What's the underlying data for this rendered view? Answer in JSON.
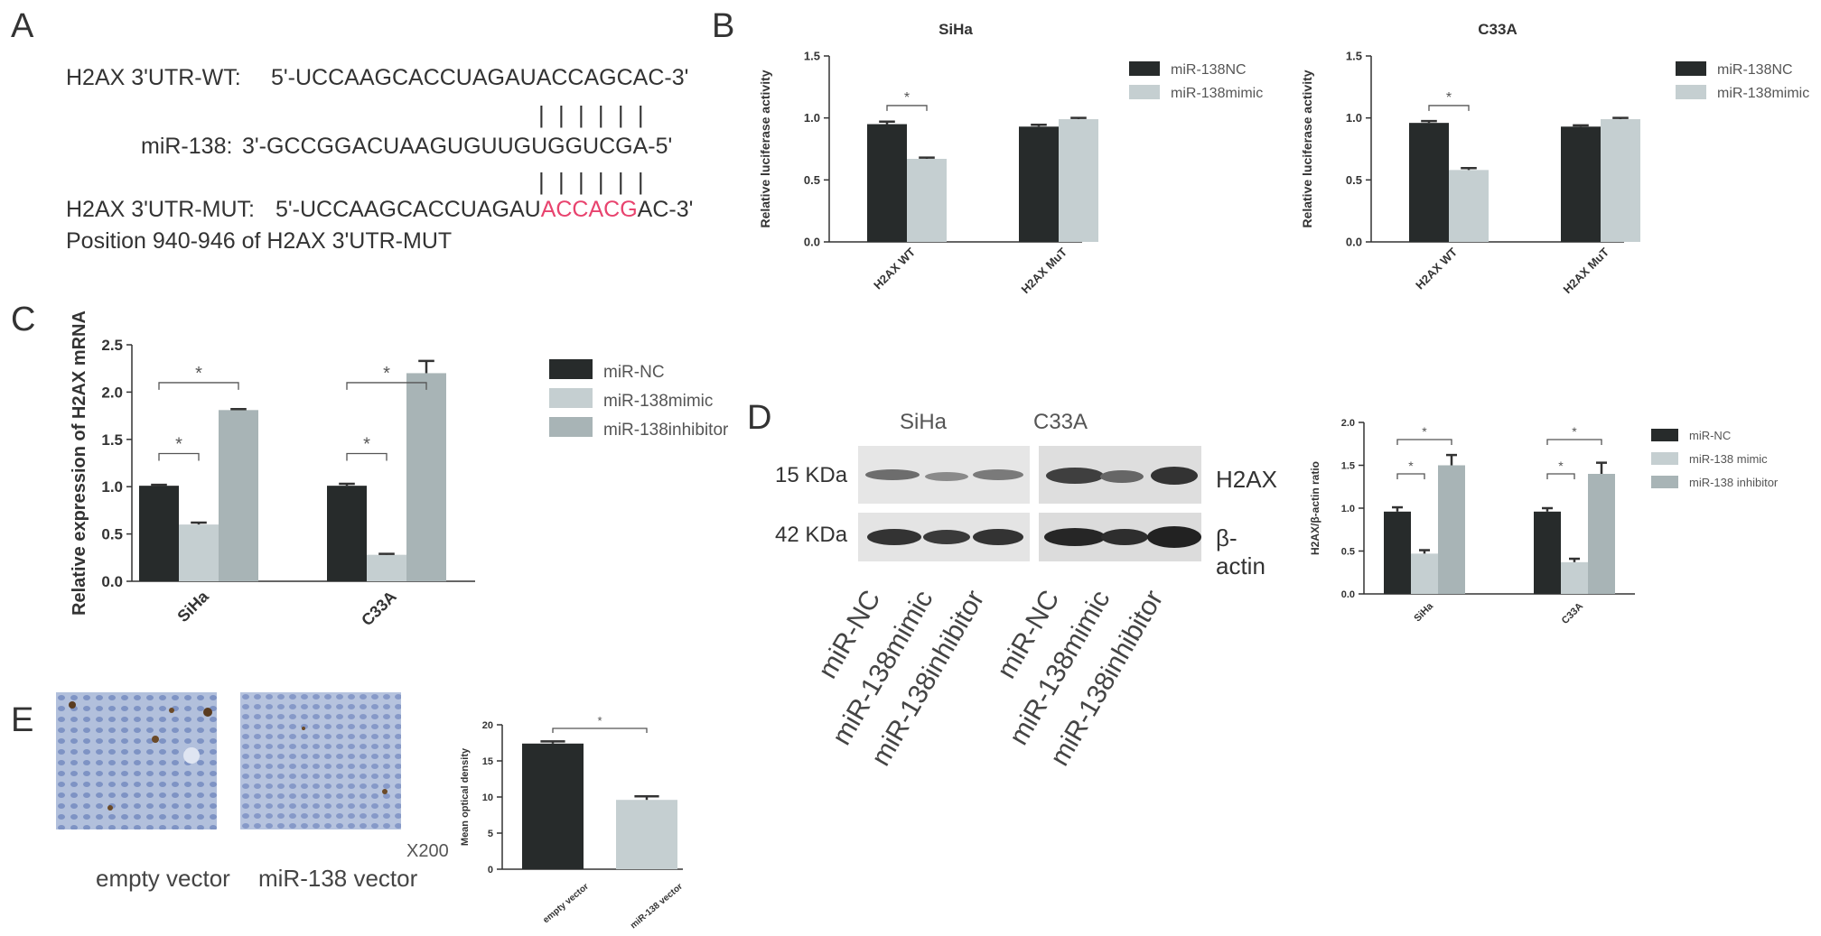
{
  "panels": {
    "A": {
      "label": "A",
      "wt_name": "H2AX 3'UTR-WT:",
      "wt_seq": "5'-UCCAAGCACCUAGAUACCAGCAC-3'",
      "pairing_bars": "| | | | | |",
      "mir_name": "miR-138:",
      "mir_seq": "3'-GCCGGACUAAGUGUUGUGGUCGA-5'",
      "mut_name": "H2AX 3'UTR-MUT:",
      "mut_seq_pre": "5'-UCCAAGCACCUAGAU",
      "mut_seq_mut": "ACCACG",
      "mut_seq_post": "AC-3'",
      "position_note": "Position 940-946 of H2AX 3'UTR-MUT"
    },
    "B": {
      "label": "B"
    },
    "C": {
      "label": "C"
    },
    "D": {
      "label": "D",
      "cell_siha": "SiHa",
      "cell_c33a": "C33A",
      "kda15": "15 KDa",
      "kda42": "42 KDa",
      "h2ax": "H2AX",
      "bactin": "β-actin",
      "lanes": [
        "miR-NC",
        "miR-138mimic",
        "miR-138inhibitor",
        "miR-NC",
        "miR-138mimic",
        "miR-138inhibitor"
      ]
    },
    "E": {
      "label": "E",
      "mag": "X200",
      "img_label_1": "empty vector",
      "img_label_2": "miR-138 vector"
    }
  },
  "colors": {
    "dark": "#272b2b",
    "light": "#c5cfd1",
    "mid": "#a8b4b6",
    "sig": "#333333"
  },
  "chart_data": [
    {
      "id": "B-SiHa",
      "type": "bar",
      "title": "SiHa",
      "ylabel": "Relative luciferase activity",
      "ylim": [
        0,
        1.5
      ],
      "yticks": [
        "0.0",
        "0.5",
        "1.0",
        "1.5"
      ],
      "categories": [
        "H2AX WT",
        "H2AX MuT"
      ],
      "series": [
        {
          "name": "miR-138NC",
          "values": [
            0.95,
            0.93
          ],
          "errors": [
            0.02,
            0.015
          ]
        },
        {
          "name": "miR-138mimic",
          "values": [
            0.67,
            0.99
          ],
          "errors": [
            0.01,
            0.01
          ]
        }
      ],
      "significance": [
        {
          "category": 0,
          "label": "*"
        }
      ],
      "legend": "right"
    },
    {
      "id": "B-C33A",
      "type": "bar",
      "title": "C33A",
      "ylabel": "Relative luciferase activity",
      "ylim": [
        0,
        1.5
      ],
      "yticks": [
        "0.0",
        "0.5",
        "1.0",
        "1.5"
      ],
      "categories": [
        "H2AX WT",
        "H2AX MuT"
      ],
      "series": [
        {
          "name": "miR-138NC",
          "values": [
            0.96,
            0.93
          ],
          "errors": [
            0.015,
            0.01
          ]
        },
        {
          "name": "miR-138mimic",
          "values": [
            0.58,
            0.99
          ],
          "errors": [
            0.015,
            0.01
          ]
        }
      ],
      "significance": [
        {
          "category": 0,
          "label": "*"
        }
      ],
      "legend": "right"
    },
    {
      "id": "C",
      "type": "bar",
      "title": "",
      "ylabel": "Relative expression of H2AX mRNA",
      "ylim": [
        0,
        2.5
      ],
      "yticks": [
        "0.0",
        "0.5",
        "1.0",
        "1.5",
        "2.0",
        "2.5"
      ],
      "categories": [
        "SiHa",
        "C33A"
      ],
      "series": [
        {
          "name": "miR-NC",
          "values": [
            1.01,
            1.01
          ],
          "errors": [
            0.01,
            0.02
          ]
        },
        {
          "name": "miR-138mimic",
          "values": [
            0.6,
            0.28
          ],
          "errors": [
            0.02,
            0.01
          ]
        },
        {
          "name": "miR-138inhibitor",
          "values": [
            1.81,
            2.2
          ],
          "errors": [
            0.01,
            0.13
          ]
        }
      ],
      "significance": [
        {
          "category": 0,
          "from": 0,
          "to": 1,
          "label": "*"
        },
        {
          "category": 0,
          "from": 0,
          "to": 2,
          "label": "*"
        },
        {
          "category": 1,
          "from": 0,
          "to": 1,
          "label": "*"
        },
        {
          "category": 1,
          "from": 0,
          "to": 2,
          "label": "*"
        }
      ],
      "legend": "right"
    },
    {
      "id": "D",
      "type": "bar",
      "title": "",
      "ylabel": "H2AX/β-actin ratio",
      "ylim": [
        0,
        2.0
      ],
      "yticks": [
        "0.0",
        "0.5",
        "1.0",
        "1.5",
        "2.0"
      ],
      "categories": [
        "SiHa",
        "C33A"
      ],
      "series": [
        {
          "name": "miR-NC",
          "values": [
            0.96,
            0.96
          ],
          "errors": [
            0.05,
            0.04
          ]
        },
        {
          "name": "miR-138 mimic",
          "values": [
            0.47,
            0.37
          ],
          "errors": [
            0.04,
            0.04
          ]
        },
        {
          "name": "miR-138 inhibitor",
          "values": [
            1.5,
            1.4
          ],
          "errors": [
            0.12,
            0.13
          ]
        }
      ],
      "significance": [
        {
          "category": 0,
          "from": 0,
          "to": 1,
          "label": "*"
        },
        {
          "category": 0,
          "from": 0,
          "to": 2,
          "label": "*"
        },
        {
          "category": 1,
          "from": 0,
          "to": 1,
          "label": "*"
        },
        {
          "category": 1,
          "from": 0,
          "to": 2,
          "label": "*"
        }
      ],
      "legend": "right"
    },
    {
      "id": "E",
      "type": "bar",
      "title": "",
      "ylabel": "Mean optical density",
      "ylim": [
        0,
        20
      ],
      "yticks": [
        "0",
        "5",
        "10",
        "15",
        "20"
      ],
      "categories": [
        "empty vector",
        "miR-138 vector"
      ],
      "series": [
        {
          "name": "empty vector",
          "values": [
            17.4,
            null
          ],
          "errors": [
            0.3,
            null
          ]
        },
        {
          "name": "miR-138 vector",
          "values": [
            null,
            9.6
          ],
          "errors": [
            null,
            0.5
          ]
        }
      ],
      "significance": [
        {
          "category": 0,
          "from": 0,
          "to": 1,
          "label": "*",
          "across": true
        }
      ],
      "legend": "left"
    }
  ]
}
